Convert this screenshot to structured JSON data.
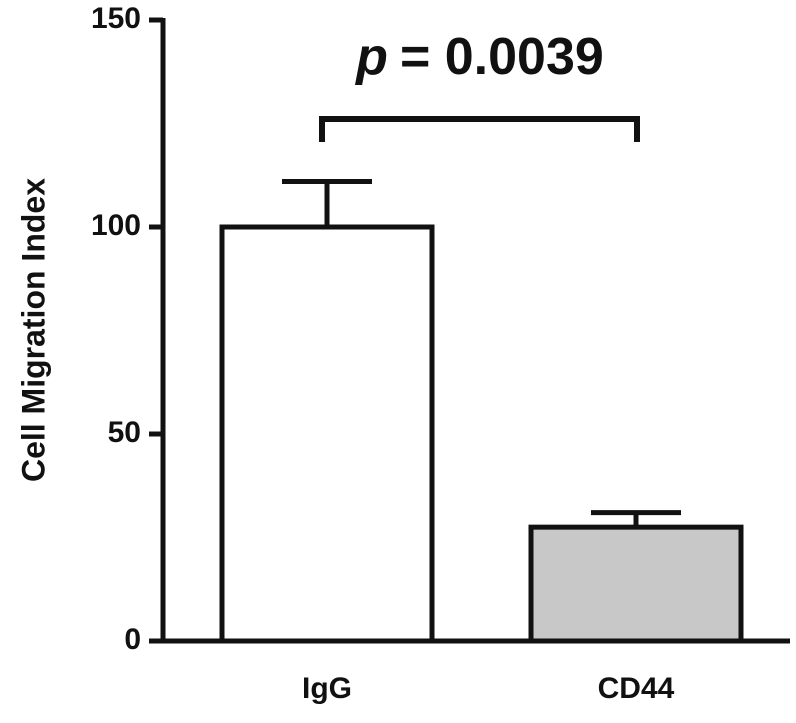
{
  "chart_data": {
    "type": "bar",
    "ylabel": "Cell Migration Index",
    "categories": [
      "IgG",
      "CD44"
    ],
    "values": [
      100,
      27.5
    ],
    "errors": [
      11,
      3.5
    ],
    "colors": [
      "#ffffff",
      "#c8c8c8"
    ],
    "ylim": [
      0,
      150
    ],
    "yticks": [
      0,
      50,
      100,
      150
    ],
    "annotation": {
      "symbol": "p",
      "value": "= 0.0039"
    }
  }
}
